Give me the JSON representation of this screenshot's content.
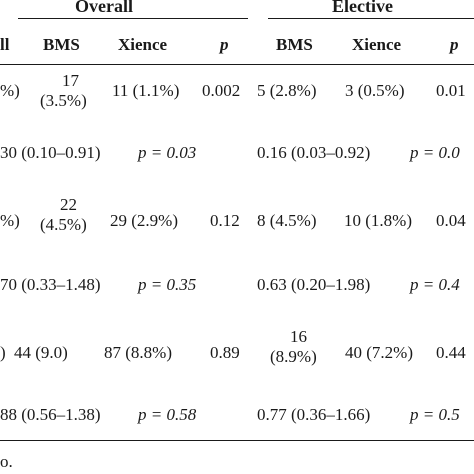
{
  "header": {
    "groups": {
      "overall": "Overall",
      "elective": "Elective"
    },
    "columns": {
      "first_partial": "ll",
      "overall_bms": "BMS",
      "overall_xience": "Xience",
      "overall_p": "p",
      "elective_bms": "BMS",
      "elective_xience": "Xience",
      "elective_p": "p"
    }
  },
  "rows": [
    {
      "first_partial": "%)",
      "overall_bms": [
        "17",
        "(3.5%)"
      ],
      "overall_xience": "11 (1.1%)",
      "overall_p": "0.002",
      "elective_bms": "5 (2.8%)",
      "elective_xience": "3 (0.5%)",
      "elective_p": "0.01"
    },
    {
      "overall_hr": "30 (0.10–0.91)",
      "overall_hr_p": "p = 0.03",
      "elective_hr": "0.16 (0.03–0.92)",
      "elective_hr_p": "p = 0.0"
    },
    {
      "first_partial": "%)",
      "overall_bms": [
        "22",
        "(4.5%)"
      ],
      "overall_xience": "29 (2.9%)",
      "overall_p": "0.12",
      "elective_bms": "8 (4.5%)",
      "elective_xience": "10 (1.8%)",
      "elective_p": "0.04"
    },
    {
      "overall_hr": "70 (0.33–1.48)",
      "overall_hr_p": "p = 0.35",
      "elective_hr": "0.63 (0.20–1.98)",
      "elective_hr_p": "p = 0.4"
    },
    {
      "first_partial": ")",
      "overall_bms": "44 (9.0)",
      "overall_xience": "87 (8.8%)",
      "overall_p": "0.89",
      "elective_bms": [
        "16",
        "(8.9%)"
      ],
      "elective_xience": "40 (7.2%)",
      "elective_p": "0.44"
    },
    {
      "overall_hr": "88 (0.56–1.38)",
      "overall_hr_p": "p = 0.58",
      "elective_hr": "0.77 (0.36–1.66)",
      "elective_hr_p": "p = 0.5"
    }
  ],
  "footnote": "o."
}
